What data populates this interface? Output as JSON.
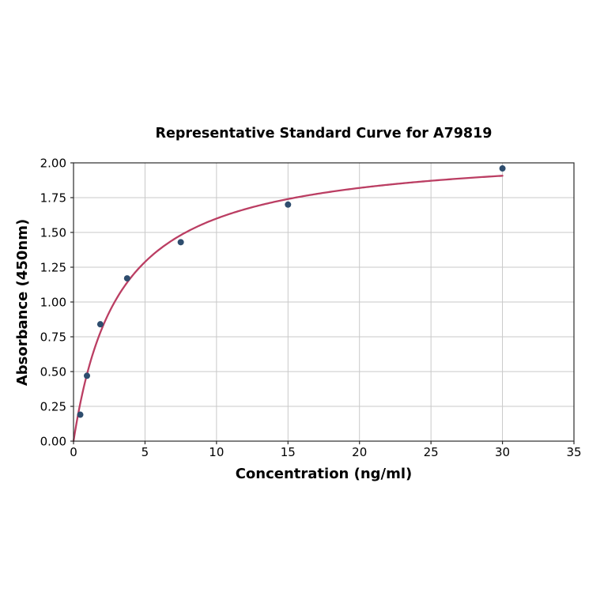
{
  "chart_data": {
    "type": "scatter",
    "title": "Representative Standard Curve for A79819",
    "xlabel": "Concentration (ng/ml)",
    "ylabel": "Absorbance (450nm)",
    "xlim": [
      0,
      35
    ],
    "ylim": [
      0,
      2.0
    ],
    "grid": true,
    "legend": "none",
    "points": {
      "x": [
        0.47,
        0.94,
        1.875,
        3.75,
        7.5,
        15,
        30
      ],
      "y": [
        0.19,
        0.47,
        0.84,
        1.17,
        1.43,
        1.7,
        1.96
      ]
    },
    "curve_fit": {
      "model": "saturation: y = Vmax*x/(Km+x)",
      "vmax": 2.11,
      "km": 3.19,
      "x_range": [
        0,
        30
      ]
    },
    "xticks": {
      "values": [
        0,
        5,
        10,
        15,
        20,
        25,
        30,
        35
      ],
      "labels": [
        "0",
        "5",
        "10",
        "15",
        "20",
        "25",
        "30",
        "35"
      ]
    },
    "yticks": {
      "values": [
        0,
        0.25,
        0.5,
        0.75,
        1.0,
        1.25,
        1.5,
        1.75,
        2.0
      ],
      "labels": [
        "0.00",
        "0.25",
        "0.50",
        "0.75",
        "1.00",
        "1.25",
        "1.50",
        "1.75",
        "2.00"
      ]
    },
    "colors": {
      "point": "#2e4d6e",
      "curve": "#bb3e63",
      "grid": "#c9c9c9",
      "spine": "#2b2b2b",
      "text": "#000000"
    }
  }
}
